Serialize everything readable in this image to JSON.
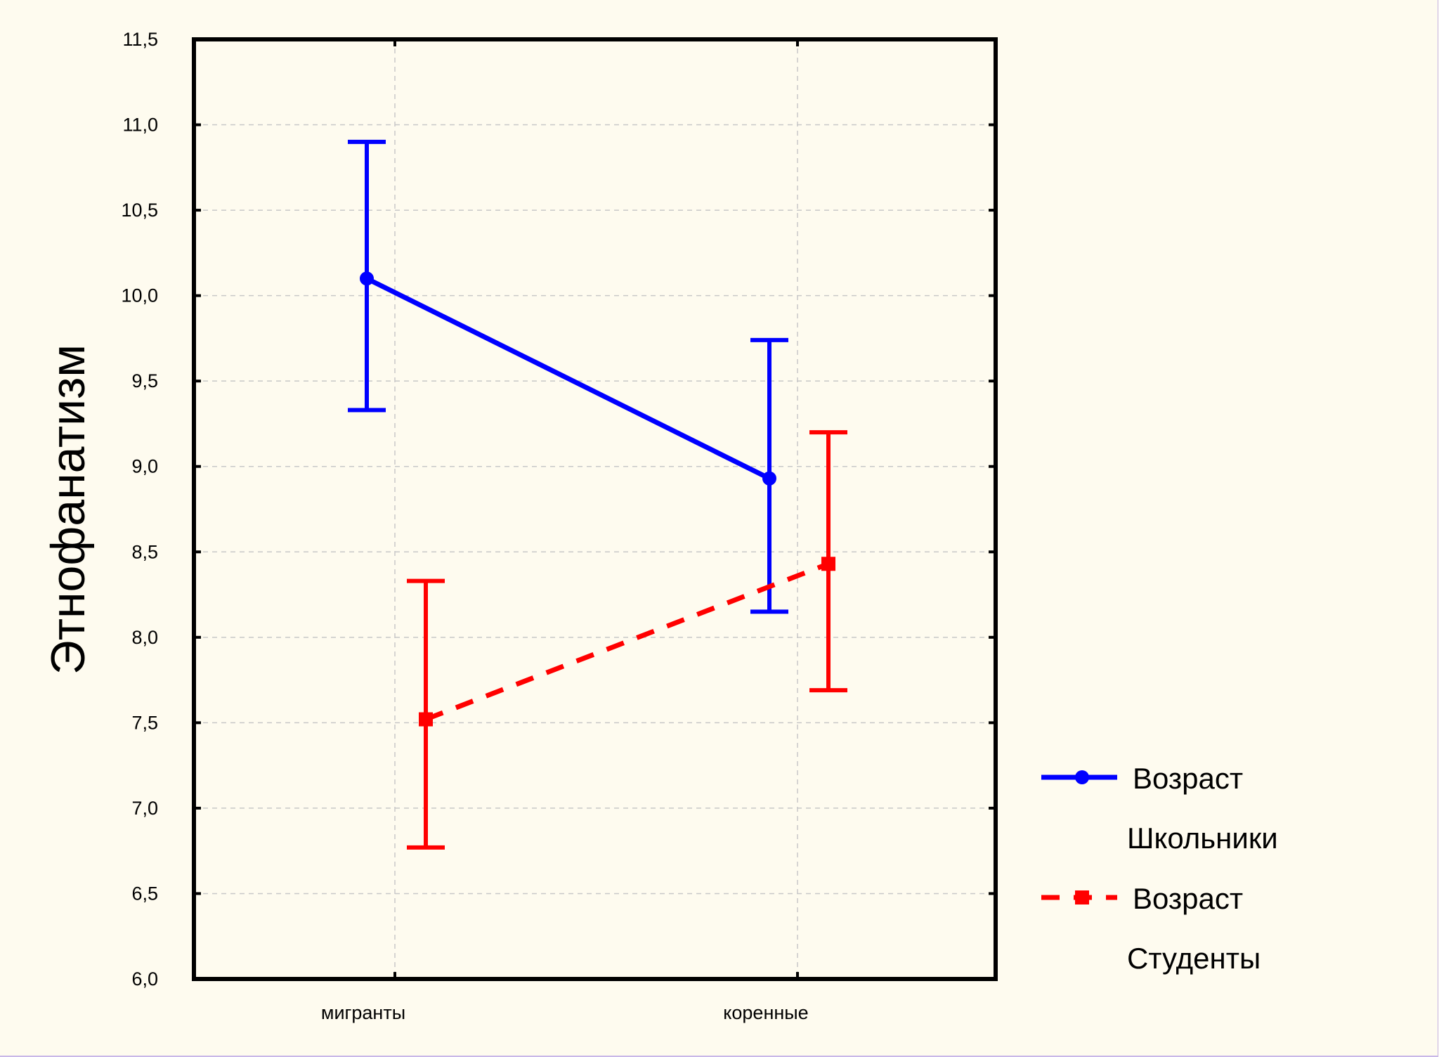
{
  "chart_data": {
    "type": "line",
    "title": "",
    "xlabel": "",
    "ylabel": "Этнофанатизм",
    "ylim": [
      6.0,
      11.5
    ],
    "yticks": [
      "6,0",
      "6,5",
      "7,0",
      "7,5",
      "8,0",
      "8,5",
      "9,0",
      "9,5",
      "10,0",
      "10,5",
      "11,0",
      "11,5"
    ],
    "categories": [
      "мигранты",
      "коренные"
    ],
    "grid": true,
    "legend_position": "right",
    "series": [
      {
        "name": "Возраст Школьники",
        "legend_title": "Возраст",
        "legend_value": "Школьники",
        "color": "#0000ff",
        "line_style": "solid",
        "marker": "circle",
        "values": [
          10.1,
          8.93
        ],
        "error_low": [
          9.33,
          8.15
        ],
        "error_high": [
          10.9,
          9.74
        ]
      },
      {
        "name": "Возраст Студенты",
        "legend_title": "Возраст",
        "legend_value": "Студенты",
        "color": "#ff0000",
        "line_style": "dashed",
        "marker": "square",
        "values": [
          7.52,
          8.43
        ],
        "error_low": [
          6.77,
          7.69
        ],
        "error_high": [
          8.33,
          9.2
        ]
      }
    ]
  }
}
